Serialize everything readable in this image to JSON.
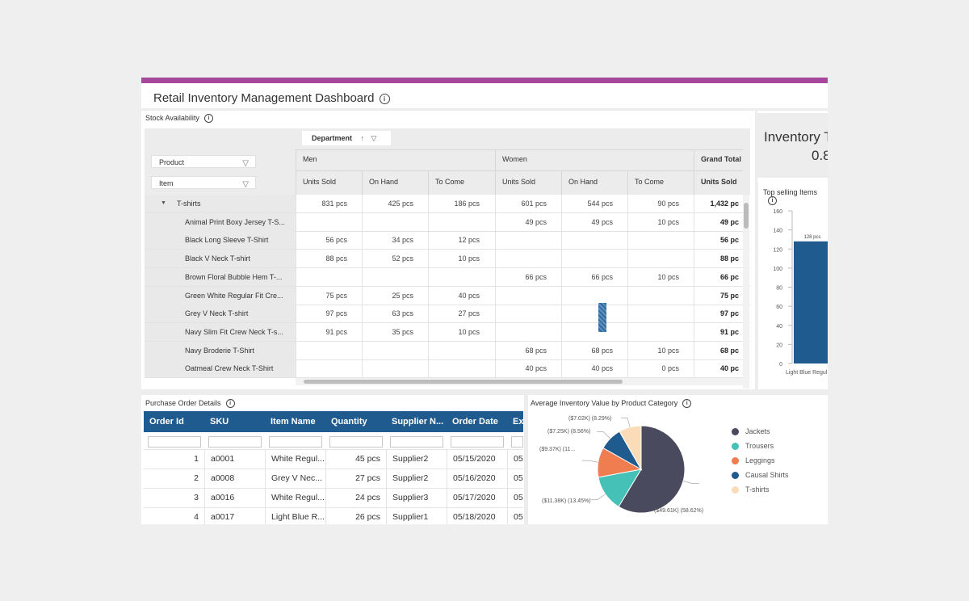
{
  "app": {
    "title": "Retail Inventory Management Dashboard",
    "accent": "#a6479c"
  },
  "stock": {
    "title": "Stock Availability",
    "filters": {
      "product": "Product",
      "item": "Item",
      "department": "Department"
    },
    "groups": {
      "men": "Men",
      "women": "Women",
      "grand_total": "Grand Total"
    },
    "columns": [
      "Units Sold",
      "On Hand",
      "To Come",
      "Units Sold",
      "On Hand",
      "To Come",
      "Units Sold"
    ],
    "rows": [
      {
        "label": "T-shirts",
        "cells": [
          "831 pcs",
          "425 pcs",
          "186 pcs",
          "601 pcs",
          "544 pcs",
          "90 pcs",
          "1,432 pc"
        ]
      },
      {
        "label": "Animal Print Boxy Jersey T-S...",
        "cells": [
          "",
          "",
          "",
          "49 pcs",
          "49 pcs",
          "10 pcs",
          "49 pc"
        ]
      },
      {
        "label": "Black Long Sleeve T-Shirt",
        "cells": [
          "56 pcs",
          "34 pcs",
          "12 pcs",
          "",
          "",
          "",
          "56 pc"
        ]
      },
      {
        "label": "Black V Neck T-shirt",
        "cells": [
          "88 pcs",
          "52 pcs",
          "10 pcs",
          "",
          "",
          "",
          "88 pc"
        ]
      },
      {
        "label": "Brown Floral Bubble Hem T-...",
        "cells": [
          "",
          "",
          "",
          "66 pcs",
          "66 pcs",
          "10 pcs",
          "66 pc"
        ]
      },
      {
        "label": "Green White Regular Fit Cre...",
        "cells": [
          "75 pcs",
          "25 pcs",
          "40 pcs",
          "",
          "",
          "",
          "75 pc"
        ]
      },
      {
        "label": "Grey V Neck T-shirt",
        "cells": [
          "97 pcs",
          "63 pcs",
          "27 pcs",
          "",
          "",
          "",
          "97 pc"
        ]
      },
      {
        "label": "Navy Slim Fit Crew Neck T-s...",
        "cells": [
          "91 pcs",
          "35 pcs",
          "10 pcs",
          "",
          "",
          "",
          "91 pc"
        ]
      },
      {
        "label": "Navy Broderie T-Shirt",
        "cells": [
          "",
          "",
          "",
          "68 pcs",
          "68 pcs",
          "10 pcs",
          "68 pc"
        ]
      },
      {
        "label": "Oatmeal Crew Neck T-Shirt",
        "cells": [
          "",
          "",
          "",
          "40 pcs",
          "40 pcs",
          "0 pcs",
          "40 pc"
        ]
      }
    ]
  },
  "kpi": {
    "title": "Inventory T",
    "value": "0.8"
  },
  "top_selling": {
    "title": "Top selling Items",
    "bar_color": "#1f5b8e",
    "bar_label": "128 pcs",
    "x_label": "Light Blue Regul"
  },
  "purchase_orders": {
    "title": "Purchase Order Details",
    "header_color": "#1f5b8e",
    "columns": [
      "Order Id",
      "SKU",
      "Item Name",
      "Quantity",
      "Supplier N...",
      "Order Date",
      "Ex"
    ],
    "rows": [
      [
        "1",
        "a0001",
        "White Regul...",
        "45 pcs",
        "Supplier2",
        "05/15/2020",
        "05"
      ],
      [
        "2",
        "a0008",
        "Grey V Nec...",
        "27 pcs",
        "Supplier2",
        "05/16/2020",
        "05"
      ],
      [
        "3",
        "a0016",
        "White Regul...",
        "24 pcs",
        "Supplier3",
        "05/17/2020",
        "05"
      ],
      [
        "4",
        "a0017",
        "Light Blue R...",
        "26 pcs",
        "Supplier1",
        "05/18/2020",
        "05"
      ]
    ]
  },
  "chart_data": [
    {
      "type": "bar",
      "title": "Top selling Items",
      "categories": [
        "Light Blue Regul"
      ],
      "values": [
        128
      ],
      "data_labels": [
        "128 pcs"
      ],
      "ylim": [
        0,
        160
      ],
      "yticks": [
        0,
        20,
        40,
        60,
        80,
        100,
        120,
        140,
        160
      ]
    },
    {
      "type": "pie",
      "title": "Average Inventory Value by Product Category",
      "labels": [
        "Jackets",
        "Trousers",
        "Leggings",
        "Causal Shirts",
        "T-shirts"
      ],
      "percent": [
        58.62,
        13.45,
        11.06,
        8.56,
        8.29
      ],
      "slice_labels": [
        "($49.61K) (58.62%)",
        "($11.38K) (13.45%)",
        "($9.37K) (11...",
        "($7.25K) (8.56%)",
        "($7.02K) (8.29%)"
      ],
      "colors": [
        "#4a4a5e",
        "#45c1b8",
        "#f07d4f",
        "#1f5b8e",
        "#fbdcb8"
      ]
    }
  ]
}
